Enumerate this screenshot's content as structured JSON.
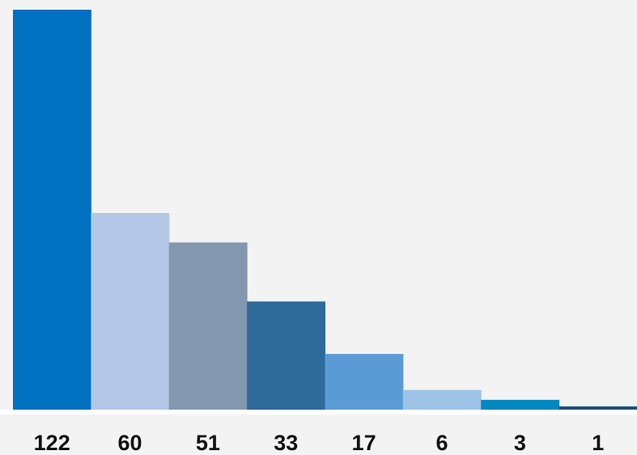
{
  "chart_data": {
    "type": "bar",
    "values": [
      122,
      60,
      51,
      33,
      17,
      6,
      3,
      1
    ],
    "value_labels": [
      "122",
      "60",
      "51",
      "33",
      "17",
      "6",
      "3",
      "1"
    ],
    "colors": [
      "#0070c0",
      "#b4c7e7",
      "#8497b0",
      "#2e6b9a",
      "#5b9bd5",
      "#9dc3e6",
      "#0088c0",
      "#1f4e79"
    ],
    "ylim": [
      0,
      122
    ],
    "grid": false,
    "legend": "none",
    "background": "#f3f3f3"
  }
}
